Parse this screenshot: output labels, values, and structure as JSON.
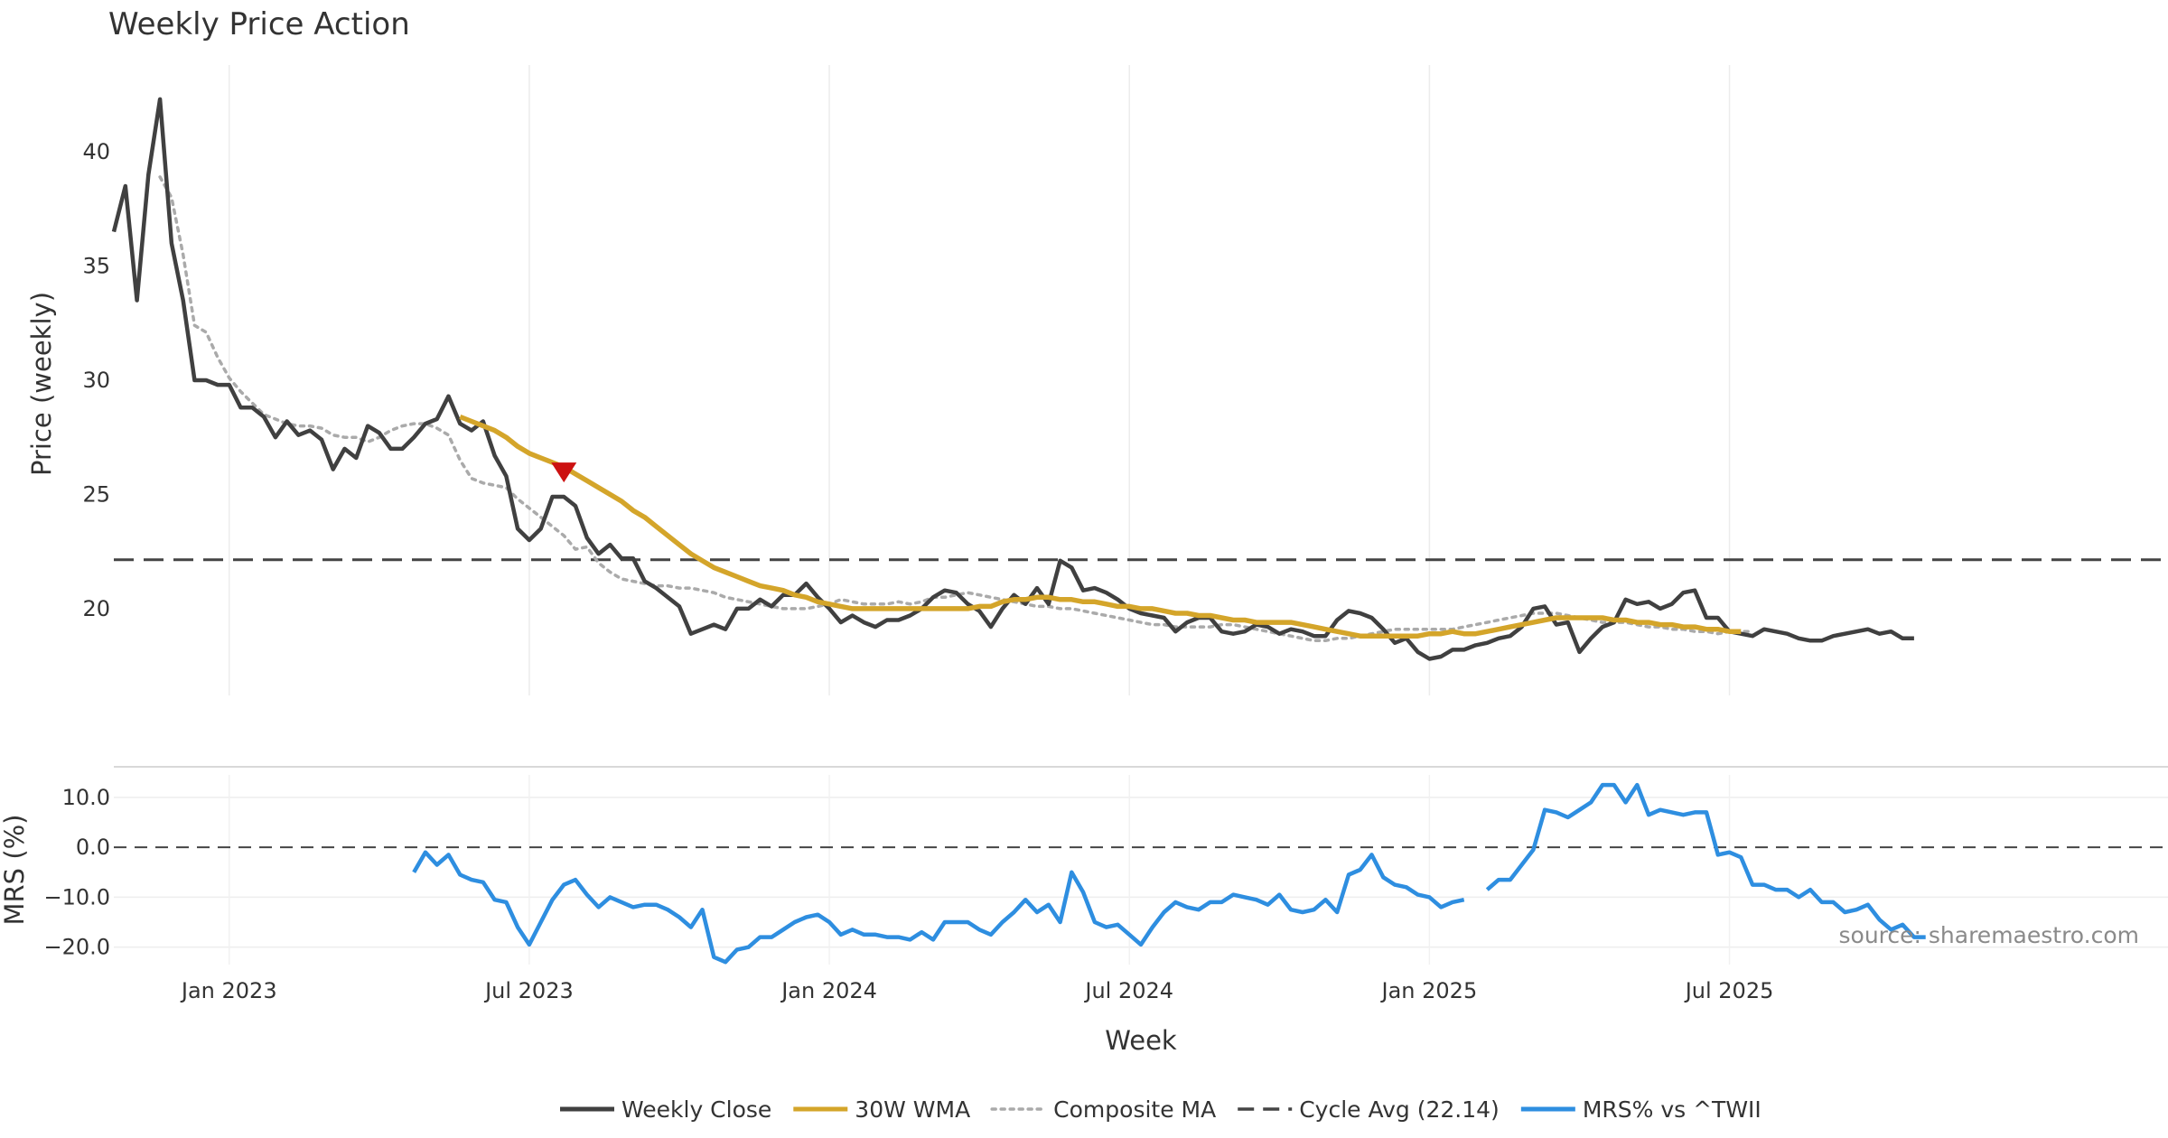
{
  "chart_data": [
    {
      "type": "line",
      "title": "Weekly Price Action",
      "ylabel": "Price (weekly)",
      "ylim": [
        16.2,
        43.8
      ],
      "yticks": [
        20,
        25,
        30,
        35,
        40
      ],
      "xlim": [
        0,
        178
      ],
      "series": [
        {
          "name": "Weekly Close",
          "color": "#404040",
          "start": 0,
          "values": [
            36.5,
            38.5,
            33.5,
            39.0,
            42.3,
            36.0,
            33.5,
            30.0,
            30.0,
            29.8,
            29.8,
            28.8,
            28.8,
            28.4,
            27.5,
            28.2,
            27.6,
            27.8,
            27.4,
            26.1,
            27.0,
            26.6,
            28.0,
            27.7,
            27.0,
            27.0,
            27.5,
            28.1,
            28.3,
            29.3,
            28.1,
            27.8,
            28.2,
            26.7,
            25.8,
            23.5,
            23.0,
            23.5,
            24.9,
            24.9,
            24.5,
            23.1,
            22.4,
            22.8,
            22.2,
            22.2,
            21.2,
            20.9,
            20.5,
            20.1,
            18.9,
            19.1,
            19.3,
            19.1,
            20.0,
            20.0,
            20.4,
            20.1,
            20.6,
            20.6,
            21.1,
            20.5,
            20.0,
            19.4,
            19.7,
            19.4,
            19.2,
            19.5,
            19.5,
            19.7,
            20.0,
            20.5,
            20.8,
            20.7,
            20.2,
            19.9,
            19.2,
            20.0,
            20.6,
            20.2,
            20.9,
            20.2,
            22.1,
            21.8,
            20.8,
            20.9,
            20.7,
            20.4,
            20.0,
            19.8,
            19.7,
            19.6,
            19.0,
            19.4,
            19.6,
            19.6,
            19.0,
            18.9,
            19.0,
            19.3,
            19.2,
            18.9,
            19.1,
            19.0,
            18.8,
            18.8,
            19.5,
            19.9,
            19.8,
            19.6,
            19.1,
            18.5,
            18.7,
            18.1,
            17.8,
            17.9,
            18.2,
            18.2,
            18.4,
            18.5,
            18.7,
            18.8,
            19.2,
            20.0,
            20.1,
            19.3,
            19.4,
            18.1,
            18.7,
            19.2,
            19.4,
            20.4,
            20.2,
            20.3,
            20.0,
            20.2,
            20.7,
            20.8,
            19.6,
            19.6,
            19.0,
            18.9,
            18.8,
            19.1,
            19.0,
            18.9,
            18.7,
            18.6,
            18.6,
            18.8,
            18.9,
            19.0,
            19.1,
            18.9,
            19.0,
            18.7,
            18.7
          ]
        },
        {
          "name": "30W WMA",
          "color": "#d4a52a",
          "start": 30,
          "values": [
            28.4,
            28.2,
            28.0,
            27.8,
            27.5,
            27.1,
            26.8,
            26.6,
            26.4,
            26.2,
            25.9,
            25.6,
            25.3,
            25.0,
            24.7,
            24.3,
            24.0,
            23.6,
            23.2,
            22.8,
            22.4,
            22.1,
            21.8,
            21.6,
            21.4,
            21.2,
            21.0,
            20.9,
            20.8,
            20.6,
            20.5,
            20.3,
            20.2,
            20.1,
            20.0,
            20.0,
            20.0,
            20.0,
            20.0,
            20.0,
            20.0,
            20.0,
            20.0,
            20.0,
            20.0,
            20.1,
            20.1,
            20.3,
            20.4,
            20.4,
            20.5,
            20.5,
            20.4,
            20.4,
            20.3,
            20.3,
            20.2,
            20.1,
            20.1,
            20.0,
            20.0,
            19.9,
            19.8,
            19.8,
            19.7,
            19.7,
            19.6,
            19.5,
            19.5,
            19.4,
            19.4,
            19.4,
            19.4,
            19.3,
            19.2,
            19.1,
            19.0,
            18.9,
            18.8,
            18.8,
            18.8,
            18.8,
            18.8,
            18.8,
            18.9,
            18.9,
            19.0,
            18.9,
            18.9,
            19.0,
            19.1,
            19.2,
            19.3,
            19.4,
            19.5,
            19.6,
            19.6,
            19.6,
            19.6,
            19.6,
            19.5,
            19.5,
            19.4,
            19.4,
            19.3,
            19.3,
            19.2,
            19.2,
            19.1,
            19.1,
            19.0,
            19.0
          ]
        },
        {
          "name": "Composite MA",
          "color": "#aaaaaa",
          "start": 4,
          "values": [
            38.9,
            38.0,
            35.5,
            32.4,
            32.1,
            31.0,
            30.1,
            29.5,
            29.0,
            28.5,
            28.3,
            28.1,
            28.0,
            28.0,
            27.9,
            27.6,
            27.5,
            27.5,
            27.3,
            27.5,
            27.8,
            28.0,
            28.1,
            28.1,
            27.9,
            27.6,
            26.5,
            25.7,
            25.5,
            25.4,
            25.3,
            24.8,
            24.4,
            24.0,
            23.6,
            23.2,
            22.6,
            22.7,
            22.0,
            21.6,
            21.3,
            21.2,
            21.1,
            21.0,
            21.0,
            20.9,
            20.9,
            20.8,
            20.7,
            20.5,
            20.4,
            20.3,
            20.2,
            20.1,
            20.0,
            20.0,
            20.0,
            20.1,
            20.2,
            20.4,
            20.3,
            20.2,
            20.2,
            20.2,
            20.3,
            20.2,
            20.3,
            20.5,
            20.5,
            20.6,
            20.7,
            20.6,
            20.5,
            20.4,
            20.3,
            20.2,
            20.1,
            20.1,
            20.0,
            20.0,
            19.9,
            19.8,
            19.7,
            19.6,
            19.5,
            19.4,
            19.3,
            19.3,
            19.2,
            19.2,
            19.2,
            19.2,
            19.3,
            19.3,
            19.2,
            19.1,
            19.0,
            18.9,
            18.8,
            18.7,
            18.6,
            18.6,
            18.7,
            18.7,
            18.8,
            18.9,
            19.0,
            19.1,
            19.1,
            19.1,
            19.1,
            19.1,
            19.1,
            19.2,
            19.3,
            19.4,
            19.5,
            19.6,
            19.7,
            19.8,
            19.8,
            19.8,
            19.7,
            19.6,
            19.5,
            19.4,
            19.4,
            19.4,
            19.3,
            19.2,
            19.2,
            19.1,
            19.1,
            19.0,
            19.0,
            18.9,
            19.0,
            19.0,
            19.0
          ]
        }
      ],
      "reference_lines": [
        {
          "name": "Cycle Avg (22.14)",
          "value": 22.14,
          "color": "#444444"
        }
      ],
      "annotations": [
        {
          "type": "sell-marker",
          "x": 39,
          "y": 26.0,
          "color": "#cc1111"
        }
      ]
    },
    {
      "type": "line",
      "ylabel": "MRS (%)",
      "ylim": [
        -23.5,
        14.5
      ],
      "yticks": [
        10,
        0,
        -10,
        -20
      ],
      "ytick_labels": [
        "10.0",
        "0.0",
        "−10.0",
        "−20.0"
      ],
      "xlabel": "Week",
      "xticks": [
        {
          "x": 10,
          "label": "Jan 2023"
        },
        {
          "x": 36,
          "label": "Jul 2023"
        },
        {
          "x": 62,
          "label": "Jan 2024"
        },
        {
          "x": 88,
          "label": "Jul 2024"
        },
        {
          "x": 114,
          "label": "Jan 2025"
        },
        {
          "x": 140,
          "label": "Jul 2025"
        }
      ],
      "series": [
        {
          "name": "MRS% vs ^TWII",
          "color": "#2e8ee0",
          "segments": [
            {
              "start": 26,
              "values": [
                -5,
                -1,
                -3.5,
                -1.5,
                -5.5,
                -6.5,
                -7,
                -10.5,
                -11,
                -16,
                -19.5,
                -15,
                -10.5,
                -7.5,
                -6.5,
                -9.5,
                -12,
                -10,
                -11,
                -12,
                -11.5,
                -11.5,
                -12.5,
                -14,
                -16,
                -12.5,
                -22,
                -23,
                -20.5,
                -20,
                -18,
                -18,
                -16.5,
                -15,
                -14,
                -13.5,
                -15,
                -17.5,
                -16.5,
                -17.5,
                -17.5,
                -18,
                -18,
                -18.5,
                -17,
                -18.5,
                -15,
                -15,
                -15,
                -16.5,
                -17.5,
                -15,
                -13,
                -10.5,
                -13,
                -11.5,
                -15,
                -5,
                -9,
                -15,
                -16,
                -15.5,
                -17.5,
                -19.5,
                -16,
                -13,
                -11,
                -12,
                -12.5,
                -11,
                -11,
                -9.5,
                -10,
                -10.5,
                -11.5,
                -9.5,
                -12.5,
                -13,
                -12.5,
                -10.5,
                -13,
                -5.5,
                -4.5,
                -1.5,
                -6,
                -7.5,
                -8,
                -9.5,
                -10,
                -12,
                -11,
                -10.5
              ]
            },
            {
              "start": 119,
              "values": [
                -8.5,
                -6.5,
                -6.5,
                -3.5,
                -0.5,
                7.5,
                7,
                6,
                7.5,
                9,
                12.5,
                12.5,
                9,
                12.5,
                6.5,
                7.5,
                7,
                6.5,
                7,
                7,
                -1.5,
                -1,
                -2,
                -7.5,
                -7.5,
                -8.5,
                -8.5,
                -10,
                -8.5,
                -11,
                -11,
                -13,
                -12.5,
                -11.5,
                -14.5,
                -16.5,
                -15.5,
                -18,
                -18
              ]
            }
          ]
        }
      ],
      "reference_lines": [
        {
          "value": 0,
          "color": "#444444"
        }
      ]
    }
  ],
  "legend": [
    {
      "label": "Weekly Close",
      "color": "#404040",
      "style": "solid"
    },
    {
      "label": "30W WMA",
      "color": "#d4a52a",
      "style": "solid"
    },
    {
      "label": "Composite MA",
      "color": "#aaaaaa",
      "style": "dotted"
    },
    {
      "label": "Cycle Avg (22.14)",
      "color": "#444444",
      "style": "dashed"
    },
    {
      "label": "MRS% vs ^TWII",
      "color": "#2e8ee0",
      "style": "solid"
    }
  ],
  "source": "source: sharemaestro.com"
}
